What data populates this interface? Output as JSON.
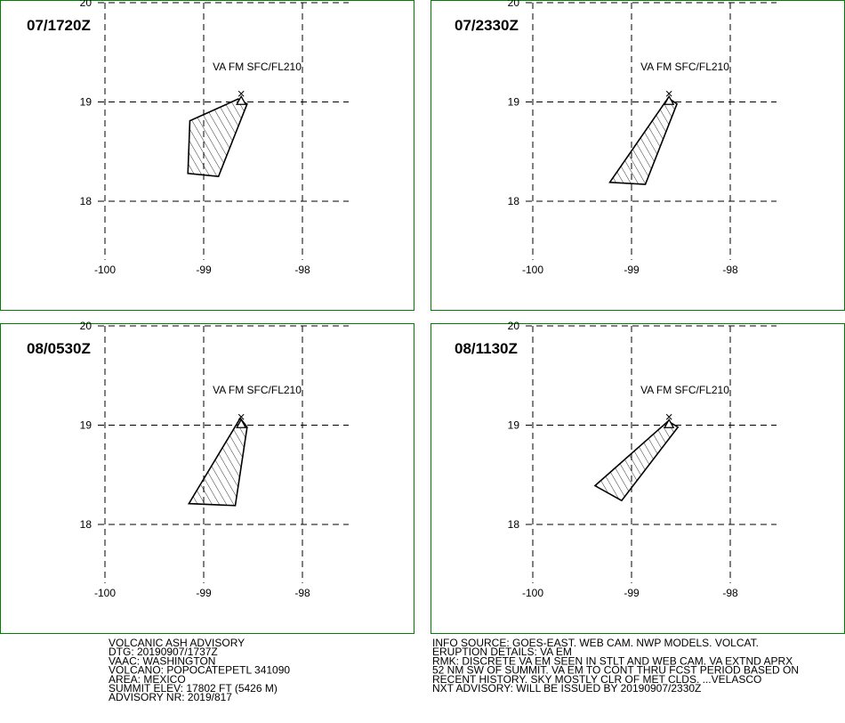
{
  "panels": [
    {
      "time": "07/1720Z",
      "layer": "VA FM SFC/FL210",
      "polygon": [
        [
          -98.65,
          19.03
        ],
        [
          -99.14,
          18.81
        ],
        [
          -99.16,
          18.28
        ],
        [
          -98.85,
          18.25
        ],
        [
          -98.56,
          18.98
        ]
      ]
    },
    {
      "time": "07/2330Z",
      "layer": "VA FM SFC/FL210",
      "polygon": [
        [
          -98.63,
          19.04
        ],
        [
          -99.22,
          18.19
        ],
        [
          -98.86,
          18.17
        ],
        [
          -98.54,
          18.98
        ]
      ]
    },
    {
      "time": "08/0530Z",
      "layer": "VA FM SFC/FL210",
      "polygon": [
        [
          -98.63,
          19.07
        ],
        [
          -99.15,
          18.21
        ],
        [
          -98.68,
          18.19
        ],
        [
          -98.56,
          18.98
        ]
      ]
    },
    {
      "time": "08/1130Z",
      "layer": "VA FM SFC/FL210",
      "polygon": [
        [
          -98.63,
          19.04
        ],
        [
          -99.37,
          18.39
        ],
        [
          -99.1,
          18.24
        ],
        [
          -98.53,
          18.98
        ]
      ]
    }
  ],
  "volcano": [
    -98.62,
    19.02
  ],
  "xticks": [
    -100,
    -99,
    -98
  ],
  "yticks": [
    20,
    19,
    18
  ],
  "advisory_left": [
    "VOLCANIC ASH ADVISORY",
    "DTG: 20190907/1737Z",
    "VAAC: WASHINGTON",
    "VOLCANO: POPOCATEPETL 341090",
    "AREA: MEXICO",
    "SUMMIT ELEV: 17802 FT (5426 M)",
    "ADVISORY NR: 2019/817"
  ],
  "advisory_right": [
    "INFO SOURCE: GOES-EAST. WEB CAM. NWP MODELS. VOLCAT.",
    "ERUPTION DETAILS: VA EM",
    "RMK: DISCRETE VA EM SEEN IN STLT AND WEB CAM. VA EXTND APRX",
    "52 NM SW OF SUMMIT. VA EM TO CONT THRU FCST PERIOD BASED ON",
    "RECENT HISTORY. SKY MOSTLY CLR OF MET CLDS. ...VELASCO",
    "NXT ADVISORY: WILL BE ISSUED BY 20190907/2330Z"
  ]
}
